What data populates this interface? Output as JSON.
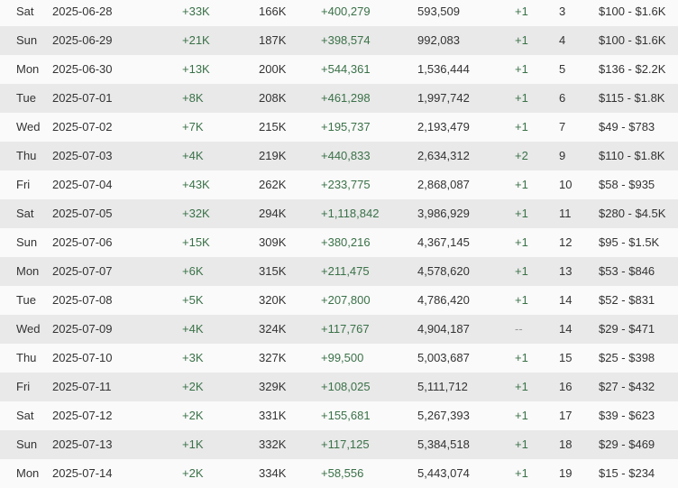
{
  "colors": {
    "positive": "#3a7148",
    "row_alt": "#e9e9e9",
    "row": "#fafafa",
    "text": "#333333",
    "muted": "#999999"
  },
  "rows": [
    {
      "day": "Sat",
      "date": "2025-06-28",
      "delta": "+33K",
      "total": "166K",
      "views_delta": "+400,279",
      "views_total": "593,509",
      "rank_change": "+1",
      "rank": "3",
      "earnings": "$100 - $1.6K"
    },
    {
      "day": "Sun",
      "date": "2025-06-29",
      "delta": "+21K",
      "total": "187K",
      "views_delta": "+398,574",
      "views_total": "992,083",
      "rank_change": "+1",
      "rank": "4",
      "earnings": "$100 - $1.6K"
    },
    {
      "day": "Mon",
      "date": "2025-06-30",
      "delta": "+13K",
      "total": "200K",
      "views_delta": "+544,361",
      "views_total": "1,536,444",
      "rank_change": "+1",
      "rank": "5",
      "earnings": "$136 - $2.2K"
    },
    {
      "day": "Tue",
      "date": "2025-07-01",
      "delta": "+8K",
      "total": "208K",
      "views_delta": "+461,298",
      "views_total": "1,997,742",
      "rank_change": "+1",
      "rank": "6",
      "earnings": "$115 - $1.8K"
    },
    {
      "day": "Wed",
      "date": "2025-07-02",
      "delta": "+7K",
      "total": "215K",
      "views_delta": "+195,737",
      "views_total": "2,193,479",
      "rank_change": "+1",
      "rank": "7",
      "earnings": "$49 - $783"
    },
    {
      "day": "Thu",
      "date": "2025-07-03",
      "delta": "+4K",
      "total": "219K",
      "views_delta": "+440,833",
      "views_total": "2,634,312",
      "rank_change": "+2",
      "rank": "9",
      "earnings": "$110 - $1.8K"
    },
    {
      "day": "Fri",
      "date": "2025-07-04",
      "delta": "+43K",
      "total": "262K",
      "views_delta": "+233,775",
      "views_total": "2,868,087",
      "rank_change": "+1",
      "rank": "10",
      "earnings": "$58 - $935"
    },
    {
      "day": "Sat",
      "date": "2025-07-05",
      "delta": "+32K",
      "total": "294K",
      "views_delta": "+1,118,842",
      "views_total": "3,986,929",
      "rank_change": "+1",
      "rank": "11",
      "earnings": "$280 - $4.5K"
    },
    {
      "day": "Sun",
      "date": "2025-07-06",
      "delta": "+15K",
      "total": "309K",
      "views_delta": "+380,216",
      "views_total": "4,367,145",
      "rank_change": "+1",
      "rank": "12",
      "earnings": "$95 - $1.5K"
    },
    {
      "day": "Mon",
      "date": "2025-07-07",
      "delta": "+6K",
      "total": "315K",
      "views_delta": "+211,475",
      "views_total": "4,578,620",
      "rank_change": "+1",
      "rank": "13",
      "earnings": "$53 - $846"
    },
    {
      "day": "Tue",
      "date": "2025-07-08",
      "delta": "+5K",
      "total": "320K",
      "views_delta": "+207,800",
      "views_total": "4,786,420",
      "rank_change": "+1",
      "rank": "14",
      "earnings": "$52 - $831"
    },
    {
      "day": "Wed",
      "date": "2025-07-09",
      "delta": "+4K",
      "total": "324K",
      "views_delta": "+117,767",
      "views_total": "4,904,187",
      "rank_change": "--",
      "rank": "14",
      "earnings": "$29 - $471"
    },
    {
      "day": "Thu",
      "date": "2025-07-10",
      "delta": "+3K",
      "total": "327K",
      "views_delta": "+99,500",
      "views_total": "5,003,687",
      "rank_change": "+1",
      "rank": "15",
      "earnings": "$25 - $398"
    },
    {
      "day": "Fri",
      "date": "2025-07-11",
      "delta": "+2K",
      "total": "329K",
      "views_delta": "+108,025",
      "views_total": "5,111,712",
      "rank_change": "+1",
      "rank": "16",
      "earnings": "$27 - $432"
    },
    {
      "day": "Sat",
      "date": "2025-07-12",
      "delta": "+2K",
      "total": "331K",
      "views_delta": "+155,681",
      "views_total": "5,267,393",
      "rank_change": "+1",
      "rank": "17",
      "earnings": "$39 - $623"
    },
    {
      "day": "Sun",
      "date": "2025-07-13",
      "delta": "+1K",
      "total": "332K",
      "views_delta": "+117,125",
      "views_total": "5,384,518",
      "rank_change": "+1",
      "rank": "18",
      "earnings": "$29 - $469"
    },
    {
      "day": "Mon",
      "date": "2025-07-14",
      "delta": "+2K",
      "total": "334K",
      "views_delta": "+58,556",
      "views_total": "5,443,074",
      "rank_change": "+1",
      "rank": "19",
      "earnings": "$15 - $234"
    }
  ]
}
